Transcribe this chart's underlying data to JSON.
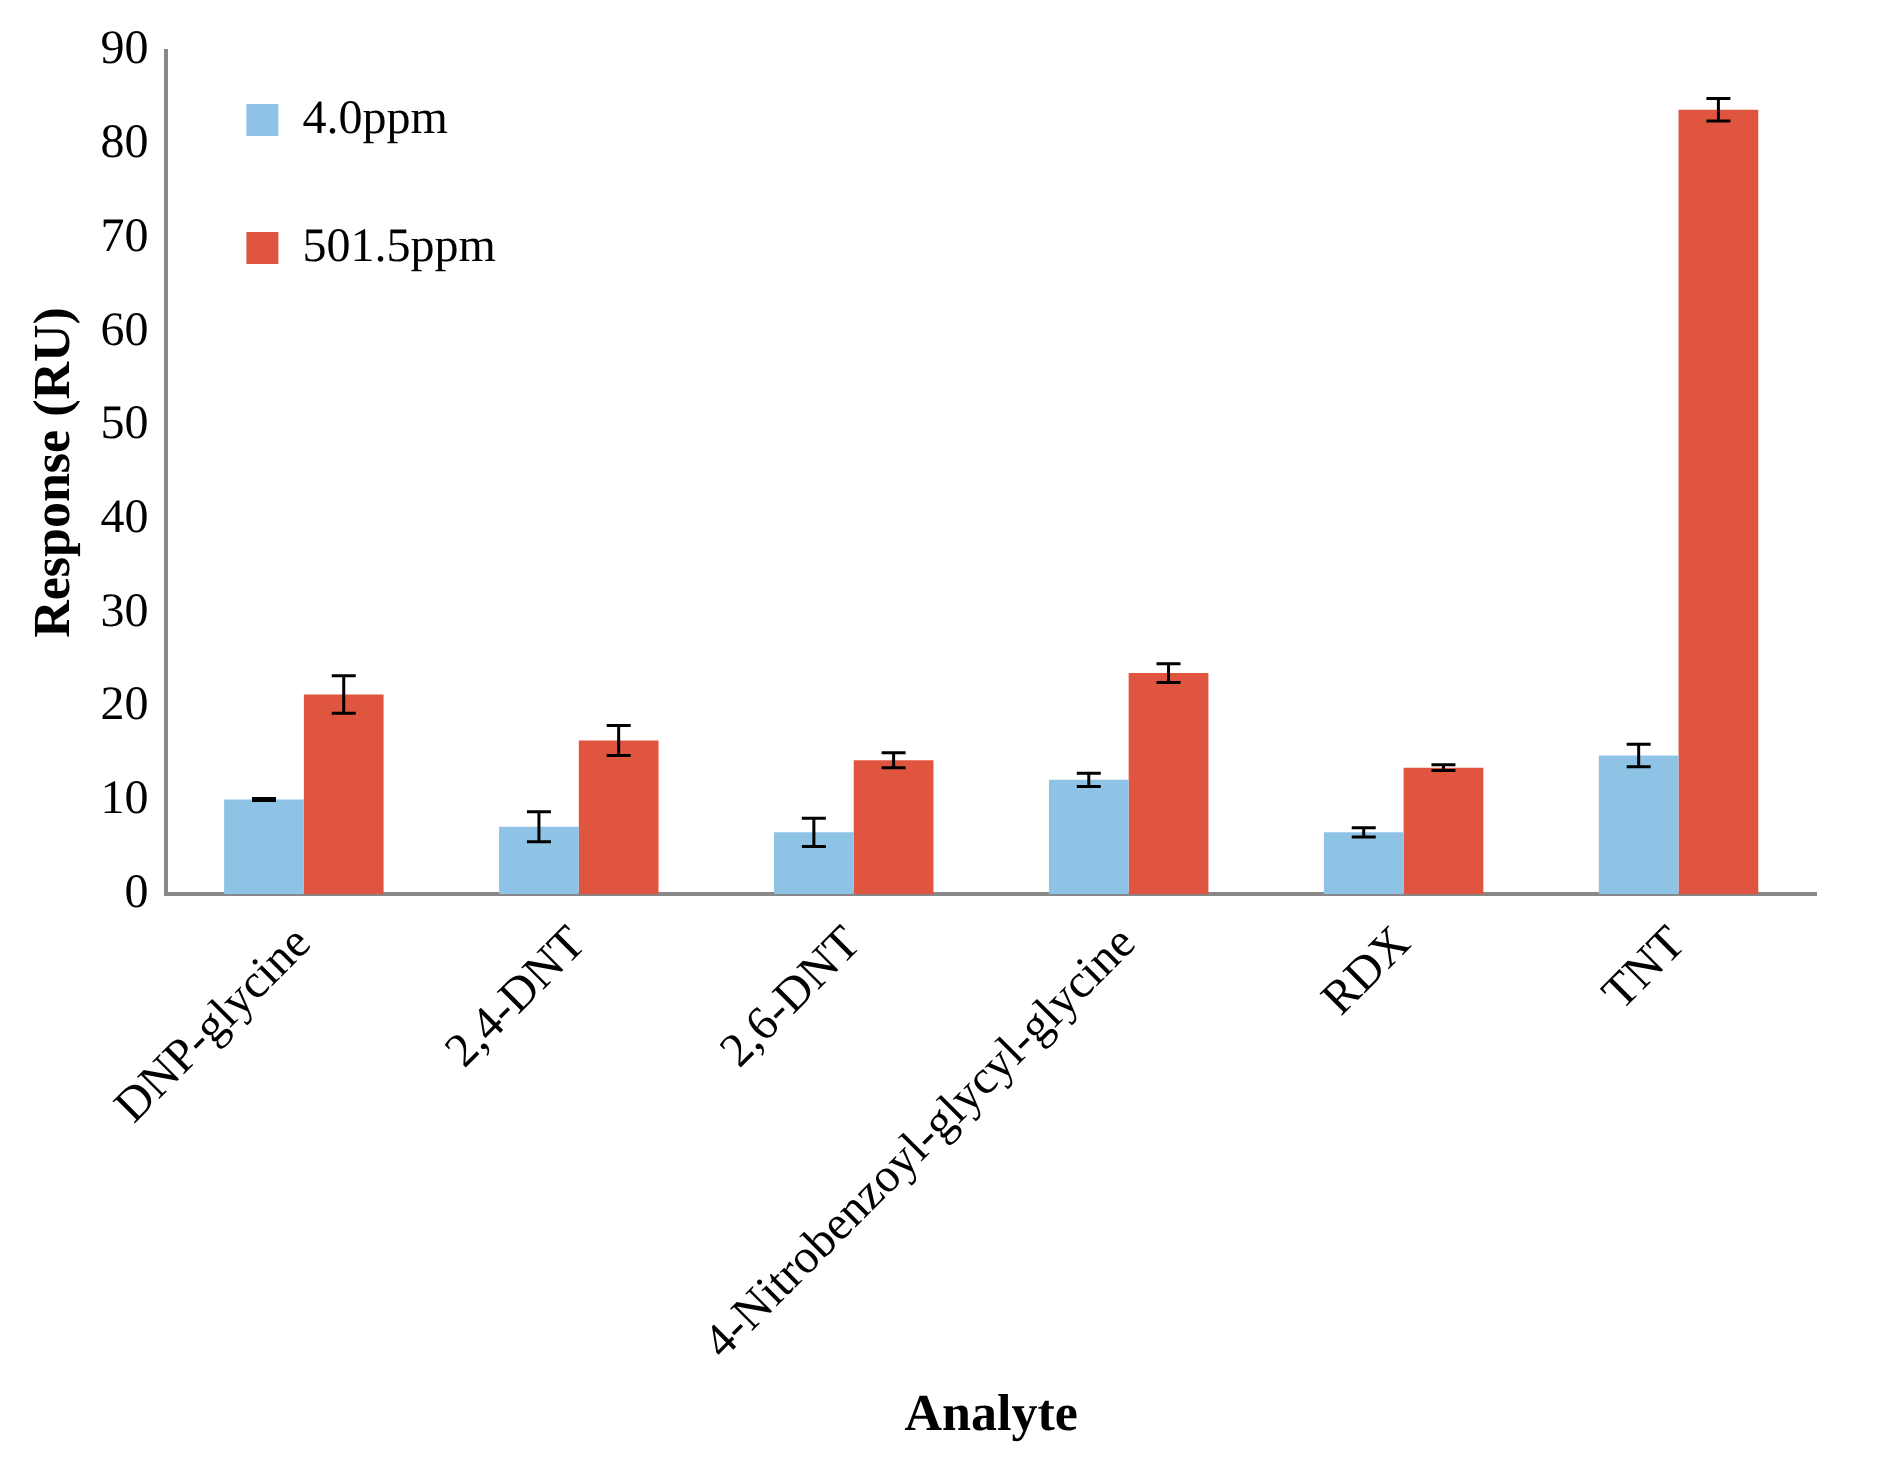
{
  "chart_data": {
    "type": "bar",
    "xlabel": "Analyte",
    "ylabel": "Response (RU)",
    "categories": [
      "DNP-glycine",
      "2,4-DNT",
      "2,6-DNT",
      "4-Nitrobenzoyl-glycyl-glycine",
      "RDX",
      "TNT"
    ],
    "series": [
      {
        "name": "4.0ppm",
        "color": "#8ec3e6",
        "values": [
          10.1,
          7.2,
          6.6,
          12.2,
          6.6,
          14.8
        ],
        "errors": [
          0.1,
          1.6,
          1.5,
          0.7,
          0.5,
          1.2
        ]
      },
      {
        "name": "501.5ppm",
        "color": "#e0553f",
        "values": [
          21.3,
          16.4,
          14.3,
          23.6,
          13.5,
          83.7
        ],
        "errors": [
          2,
          1.6,
          0.8,
          1,
          0.3,
          1.2
        ]
      }
    ],
    "ylim": [
      0,
      90
    ],
    "yticks": [
      0,
      10,
      20,
      30,
      40,
      50,
      60,
      70,
      80,
      90
    ],
    "grid": false,
    "legend": "top left"
  }
}
